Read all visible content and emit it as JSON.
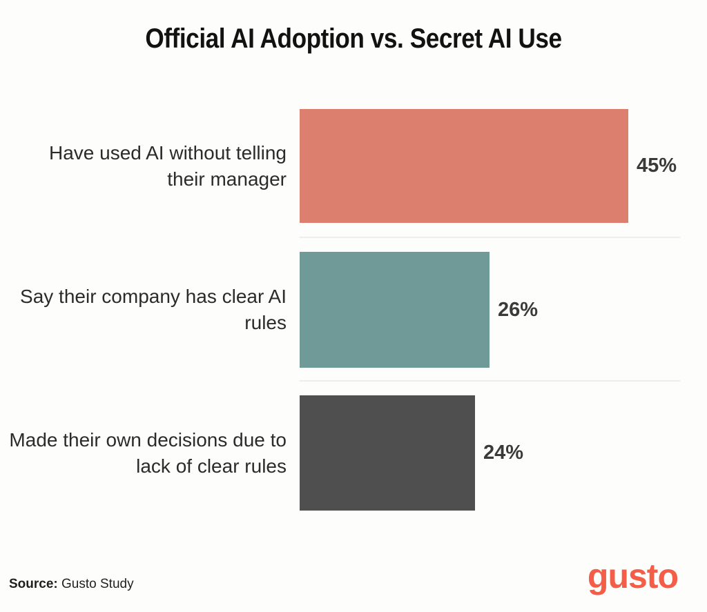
{
  "title": "Official AI Adoption vs. Secret AI Use",
  "source": {
    "label": "Source:",
    "text": " Gusto Study"
  },
  "brand": {
    "logo_text": "gusto",
    "logo_color": "#f45d48"
  },
  "colors": {
    "background": "#fdfdfb",
    "title_text": "#121212",
    "category_text": "#2b2b2b",
    "value_text": "#3a3a3a",
    "divider": "#eeeeee"
  },
  "chart_data": {
    "type": "bar",
    "orientation": "horizontal",
    "title": "Official AI Adoption vs. Secret AI Use",
    "categories": [
      "Have used AI without telling their manager",
      "Say their company has clear AI rules",
      "Made their own decisions due to lack of clear rules"
    ],
    "values": [
      45,
      26,
      24
    ],
    "value_labels": [
      "45%",
      "26%",
      "24%"
    ],
    "bar_colors": [
      "#dc7f6e",
      "#6f9a97",
      "#4f4f4f"
    ],
    "xlim": [
      0,
      52
    ],
    "grid": false,
    "legend": "none",
    "value_label_position": "right-of-bar",
    "xlabel": "",
    "ylabel": ""
  }
}
